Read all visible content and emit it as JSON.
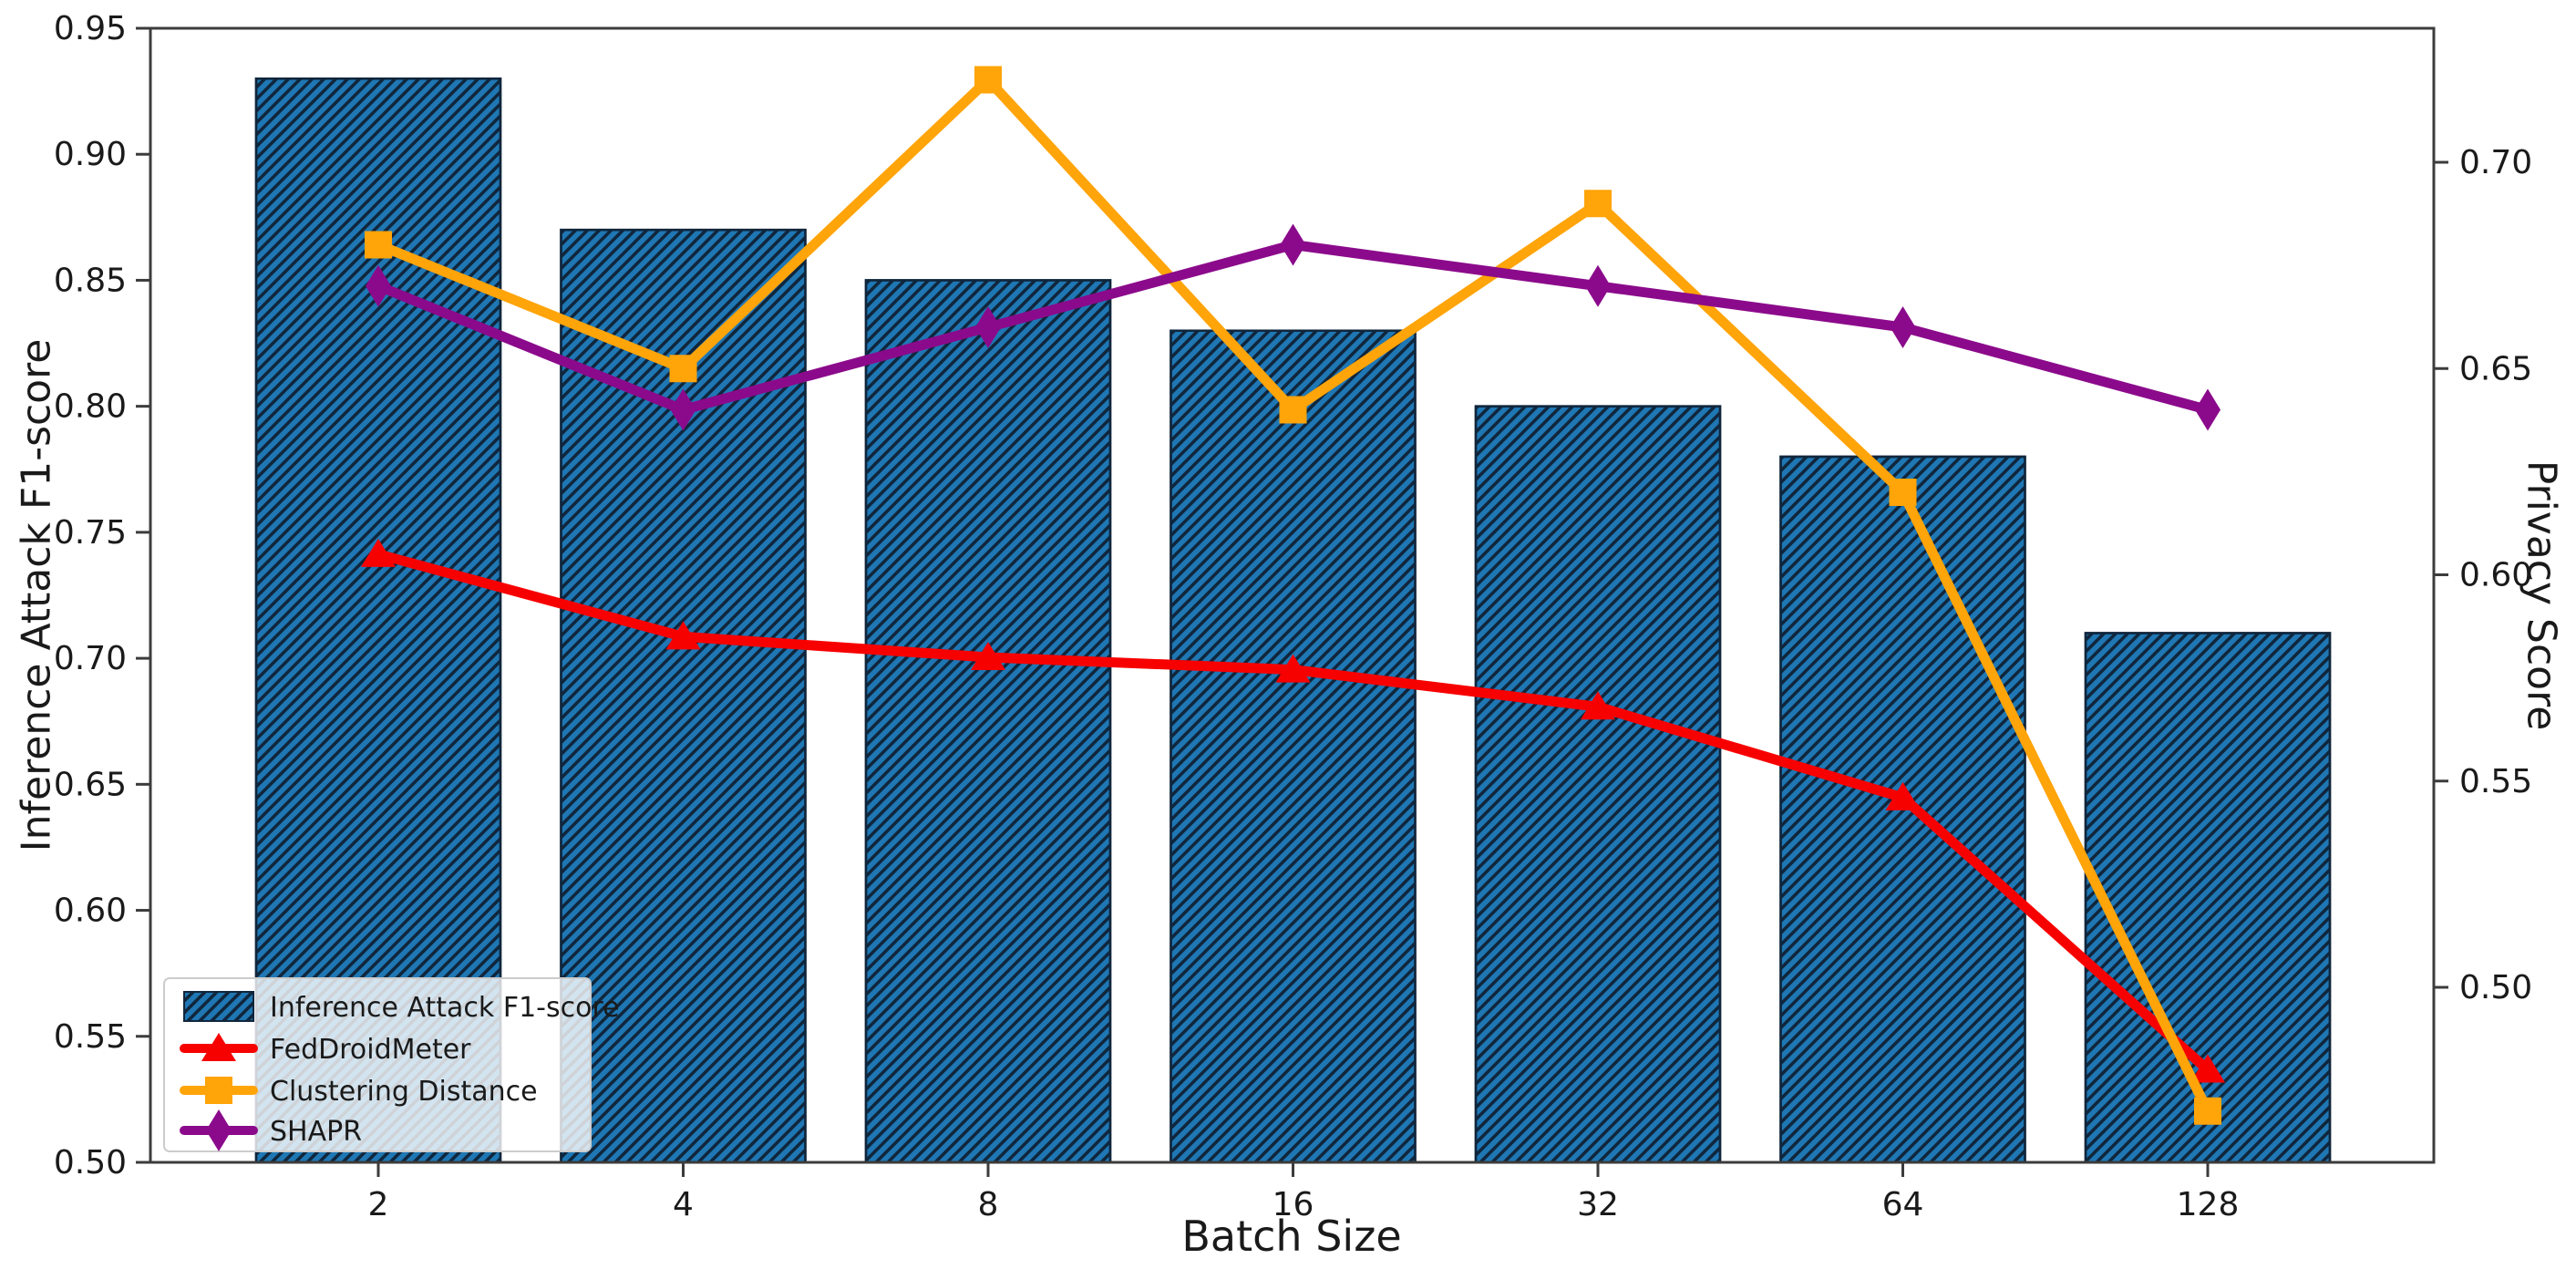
{
  "chart_data": {
    "type": "combo-bar-line",
    "x_categories": [
      "2",
      "4",
      "8",
      "16",
      "32",
      "64",
      "128"
    ],
    "xlabel": "Batch Size",
    "left_axis": {
      "label": "Inference Attack F1-score",
      "ticks": [
        0.5,
        0.55,
        0.6,
        0.65,
        0.7,
        0.75,
        0.8,
        0.85,
        0.9,
        0.95
      ],
      "ylim": [
        0.5,
        0.95
      ]
    },
    "right_axis": {
      "label": "Privacy Score",
      "ticks": [
        0.5,
        0.55,
        0.6,
        0.65,
        0.7
      ],
      "ylim": [
        0.458,
        0.733
      ]
    },
    "bar_series": {
      "name": "Inference Attack F1-score",
      "axis": "left",
      "values": [
        0.93,
        0.87,
        0.85,
        0.83,
        0.8,
        0.78,
        0.71
      ],
      "color": "#1f77b4",
      "hatch_color": "#10263c",
      "hatched": true
    },
    "line_series": [
      {
        "name": "FedDroidMeter",
        "axis": "right",
        "marker": "triangle_up",
        "color": "#f70000",
        "values": [
          0.605,
          0.585,
          0.58,
          0.577,
          0.568,
          0.546,
          0.48
        ]
      },
      {
        "name": "Clustering Distance",
        "axis": "right",
        "marker": "square",
        "color": "#ffa409",
        "values": [
          0.68,
          0.65,
          0.72,
          0.64,
          0.69,
          0.62,
          0.47
        ]
      },
      {
        "name": "SHAPR",
        "axis": "right",
        "marker": "thin_diamond",
        "color": "#8b0a8b",
        "values": [
          0.67,
          0.64,
          0.66,
          0.68,
          0.67,
          0.66,
          0.64
        ]
      }
    ],
    "legend": {
      "position": "lower left",
      "items": [
        "Inference Attack F1-score",
        "FedDroidMeter",
        "Clustering Distance",
        "SHAPR"
      ]
    },
    "grid": false,
    "title": ""
  }
}
